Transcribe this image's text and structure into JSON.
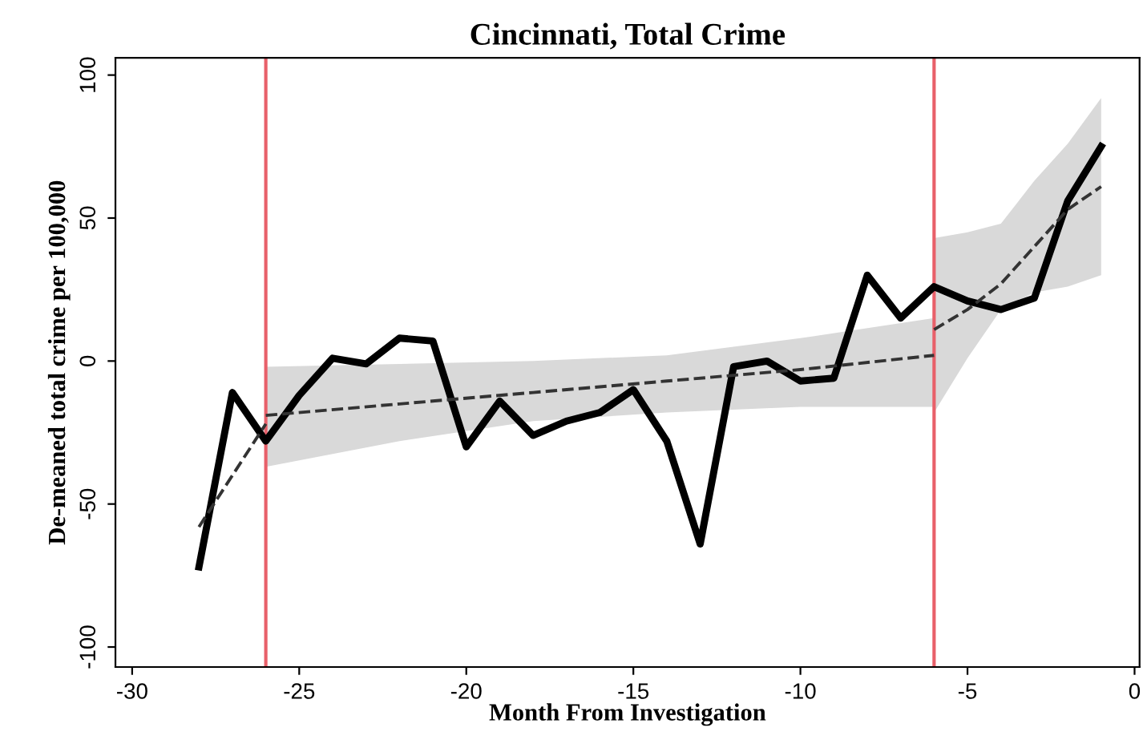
{
  "chart_data": {
    "type": "line",
    "title": "Cincinnati, Total Crime",
    "xlabel": "Month From Investigation",
    "ylabel": "De-meaned total crime per 100,000",
    "xlim": [
      -30.5,
      0.15
    ],
    "xticks": [
      -30,
      -25,
      -20,
      -15,
      -10,
      -5,
      0
    ],
    "ylim": [
      -107,
      106
    ],
    "yticks": [
      -100,
      -50,
      0,
      50,
      100
    ],
    "grid": false,
    "legend": false,
    "series": [
      {
        "color": "#000000",
        "line_style": "solid",
        "x": [
          -28,
          -27,
          -26,
          -25,
          -24,
          -23,
          -22,
          -21,
          -20,
          -19,
          -18,
          -17,
          -16,
          -15,
          -14,
          -13,
          -12,
          -11,
          -10,
          -9,
          -8,
          -7,
          -6,
          -5,
          -4,
          -3,
          -2,
          -1
        ],
        "values": [
          -72,
          -11,
          -28,
          -12,
          1,
          -1,
          8,
          7,
          -30,
          -14,
          -26,
          -21,
          -18,
          -10,
          -28,
          -64,
          -2,
          0,
          -7,
          -6,
          30,
          15,
          26,
          21,
          18,
          22,
          56,
          75
        ]
      },
      {
        "color": "#333333",
        "line_style": "dashed",
        "x": [
          -28,
          -27,
          -26
        ],
        "values": [
          -58,
          -40,
          -22
        ]
      },
      {
        "color": "#333333",
        "line_style": "dashed",
        "x": [
          -26,
          -22,
          -18,
          -14,
          -10,
          -6
        ],
        "values": [
          -19,
          -15,
          -11,
          -7,
          -3,
          2
        ],
        "lower": [
          -37,
          -28,
          -21,
          -18,
          -16,
          -16
        ],
        "upper": [
          -2,
          -1,
          0,
          2,
          8,
          15
        ]
      },
      {
        "color": "#333333",
        "line_style": "dashed",
        "x": [
          -6,
          -5,
          -4,
          -3,
          -2,
          -1
        ],
        "values": [
          11,
          18,
          27,
          40,
          53,
          61
        ],
        "lower": [
          -18,
          1,
          18,
          24,
          26,
          30
        ],
        "upper": [
          43,
          45,
          48,
          63,
          76,
          92
        ]
      }
    ],
    "ref_lines": [
      {
        "axis": "x",
        "value": -26,
        "color": "#e8606a"
      },
      {
        "axis": "x",
        "value": -6,
        "color": "#e8606a"
      }
    ]
  }
}
